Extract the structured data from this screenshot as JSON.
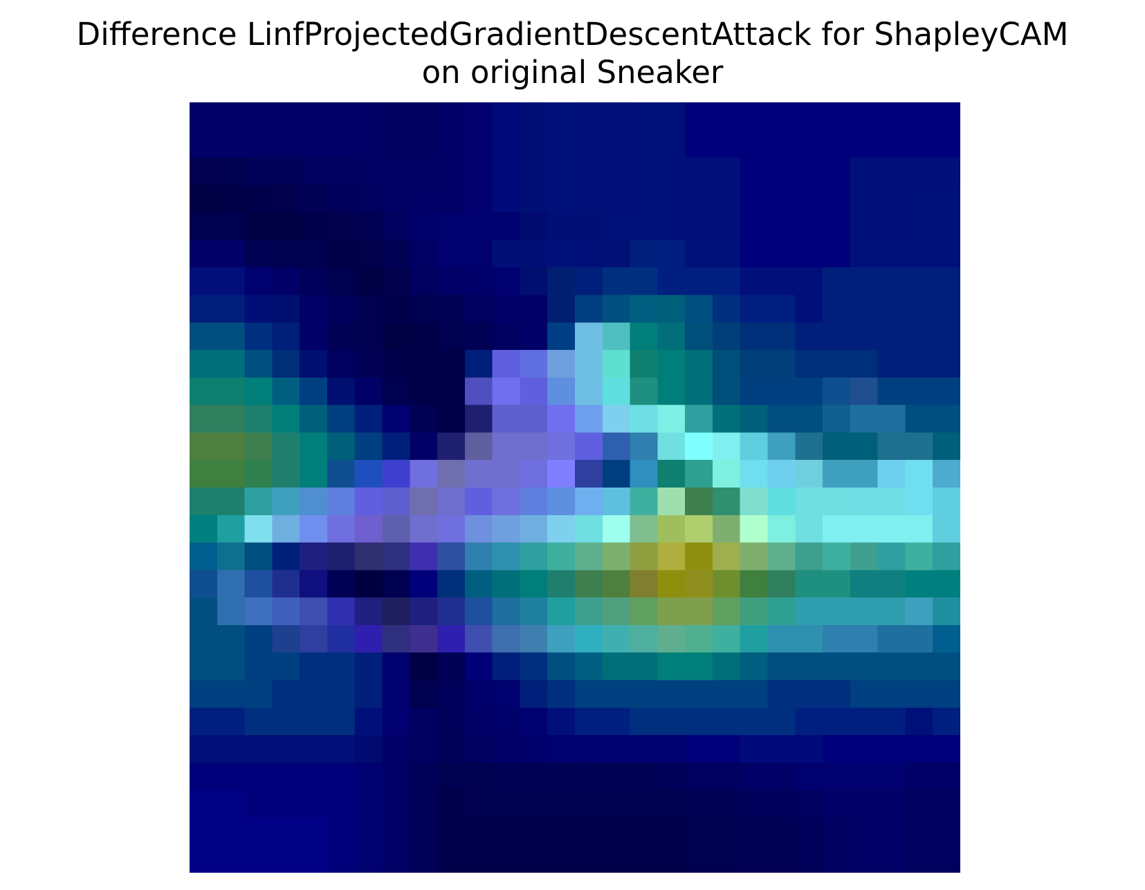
{
  "chart_data": {
    "type": "heatmap",
    "title": "Difference LinfProjectedGradientDescentAttack for ShapleyCAM\non original Sneaker",
    "title_lines": [
      "Difference LinfProjectedGradientDescentAttack for ShapleyCAM",
      "on original Sneaker"
    ],
    "xlabel": "",
    "ylabel": "",
    "axes_visible": false,
    "grid": false,
    "rows": 28,
    "cols": 28,
    "cells": [
      [
        "#000066",
        "#000066",
        "#000066",
        "#000066",
        "#000066",
        "#000066",
        "#000066",
        "#00005f",
        "#00005f",
        "#000066",
        "#00006f",
        "#000a7a",
        "#000f75",
        "#00107a",
        "#001078",
        "#001078",
        "#00107a",
        "#00107a",
        "#00007a",
        "#00007a",
        "#00007a",
        "#00007a",
        "#00007a",
        "#00007a",
        "#00007a",
        "#00007a",
        "#00007a",
        "#00007a"
      ],
      [
        "#000066",
        "#000066",
        "#000066",
        "#000066",
        "#000066",
        "#000066",
        "#000066",
        "#000060",
        "#000060",
        "#000066",
        "#00006f",
        "#000a7a",
        "#000f75",
        "#00107a",
        "#001078",
        "#001078",
        "#00107a",
        "#00107a",
        "#00007a",
        "#00007a",
        "#00007a",
        "#00007a",
        "#00007a",
        "#00007a",
        "#00007a",
        "#00007a",
        "#00007a",
        "#00007a"
      ],
      [
        "#00004f",
        "#000050",
        "#000059",
        "#000059",
        "#00005f",
        "#00005f",
        "#000062",
        "#000064",
        "#000064",
        "#000066",
        "#00006f",
        "#000a7a",
        "#000f75",
        "#00107a",
        "#001078",
        "#001078",
        "#00107a",
        "#00107a",
        "#000f7a",
        "#000f7a",
        "#00007a",
        "#00007a",
        "#00007a",
        "#00007a",
        "#000f7a",
        "#000f7a",
        "#000f7a",
        "#000f7a"
      ],
      [
        "#000044",
        "#000047",
        "#00004a",
        "#00004d",
        "#000055",
        "#00005a",
        "#00005f",
        "#000064",
        "#000066",
        "#000066",
        "#00006f",
        "#000a7a",
        "#000f75",
        "#00107a",
        "#001078",
        "#001078",
        "#00107a",
        "#00107a",
        "#000f7a",
        "#000f7a",
        "#00007a",
        "#00007a",
        "#00007a",
        "#00007a",
        "#000f7a",
        "#000f7a",
        "#00107a",
        "#00107a"
      ],
      [
        "#000050",
        "#000050",
        "#000044",
        "#000044",
        "#00004a",
        "#00004d",
        "#000052",
        "#00005e",
        "#00006a",
        "#00006e",
        "#000070",
        "#00006f",
        "#000a6f",
        "#000f76",
        "#000f76",
        "#00107a",
        "#00107a",
        "#00107a",
        "#000f7a",
        "#000f7a",
        "#00007a",
        "#00007a",
        "#00007a",
        "#00007a",
        "#000f7a",
        "#000f7a",
        "#00107a",
        "#00107a"
      ],
      [
        "#000066",
        "#000066",
        "#000055",
        "#000050",
        "#000050",
        "#000048",
        "#00004b",
        "#000055",
        "#000064",
        "#00006e",
        "#00006f",
        "#000f75",
        "#000f75",
        "#00107a",
        "#001078",
        "#001075",
        "#001f7a",
        "#001f80",
        "#00107a",
        "#00107a",
        "#00007a",
        "#00007a",
        "#00007a",
        "#00007a",
        "#00107a",
        "#00107a",
        "#00107a",
        "#00107a"
      ],
      [
        "#000f7a",
        "#000f7a",
        "#00006f",
        "#000066",
        "#00005a",
        "#000050",
        "#000044",
        "#00004d",
        "#000060",
        "#000066",
        "#00006b",
        "#000070",
        "#000f70",
        "#001f70",
        "#001f7a",
        "#002f80",
        "#002f80",
        "#001f80",
        "#001f80",
        "#001f80",
        "#000f7a",
        "#000f7a",
        "#000f7a",
        "#001f7a",
        "#001f7a",
        "#001f7a",
        "#001f7a",
        "#001f7a"
      ],
      [
        "#001f7a",
        "#001f7a",
        "#000f75",
        "#000f70",
        "#000066",
        "#00005a",
        "#000050",
        "#00004a",
        "#000050",
        "#000055",
        "#000060",
        "#000066",
        "#000066",
        "#001f70",
        "#003f80",
        "#004f80",
        "#005f80",
        "#005f7a",
        "#004f80",
        "#002f80",
        "#001f80",
        "#001f80",
        "#000f7a",
        "#001f7a",
        "#001f7a",
        "#001f7a",
        "#001f7a",
        "#001f7a"
      ],
      [
        "#004f80",
        "#004f80",
        "#002f80",
        "#001f7a",
        "#000066",
        "#000055",
        "#000050",
        "#000045",
        "#000048",
        "#000050",
        "#000055",
        "#000060",
        "#000066",
        "#003f85",
        "#6fbfe5",
        "#4fbfbf",
        "#007f7a",
        "#006f7a",
        "#004f7a",
        "#003f7a",
        "#002f7a",
        "#002f7a",
        "#001f7a",
        "#001f7a",
        "#001f7a",
        "#001f7a",
        "#001f7a",
        "#001f7a"
      ],
      [
        "#006f7a",
        "#006f7a",
        "#004f80",
        "#002f7a",
        "#000f70",
        "#000060",
        "#000055",
        "#00004a",
        "#000048",
        "#000048",
        "#001f7a",
        "#5f5fdf",
        "#5f6fdf",
        "#6f9fdf",
        "#6fbfe5",
        "#5fdfcf",
        "#0f7f6f",
        "#007f7a",
        "#006f7a",
        "#004f7a",
        "#003f7a",
        "#003f7a",
        "#002f7a",
        "#002f7a",
        "#002f7a",
        "#001f7a",
        "#001f7a",
        "#001f7a"
      ],
      [
        "#0f7f6f",
        "#0f7f6f",
        "#007f7a",
        "#005f80",
        "#003f80",
        "#000f70",
        "#000066",
        "#000050",
        "#000048",
        "#000048",
        "#4f4fbf",
        "#6f6fef",
        "#5f5fdf",
        "#5f8fdf",
        "#6fbfe5",
        "#5fdfdf",
        "#1f8f7f",
        "#007f7a",
        "#006f7a",
        "#004f7a",
        "#003f80",
        "#003f80",
        "#003f80",
        "#0f4f8f",
        "#1f4f8f",
        "#003f80",
        "#003f80",
        "#003f80"
      ],
      [
        "#2f7f5f",
        "#2f7f5f",
        "#1f7f6f",
        "#007f7a",
        "#005f7a",
        "#003f80",
        "#001f7a",
        "#000070",
        "#000055",
        "#000048",
        "#1f1f6f",
        "#5f5fcf",
        "#5f5fcf",
        "#6f6fef",
        "#6f9fef",
        "#7fcfef",
        "#6fdfe5",
        "#7fefe5",
        "#2f9f9f",
        "#006f7a",
        "#005f7a",
        "#004f80",
        "#004f80",
        "#0f5f8f",
        "#1f6f9f",
        "#1f6f9f",
        "#004f80",
        "#004f80"
      ],
      [
        "#4f7f3f",
        "#4f7f3f",
        "#3f7f4f",
        "#1f7f6f",
        "#007f7a",
        "#005f7a",
        "#003f80",
        "#001f7a",
        "#000066",
        "#1f1f6f",
        "#5f5f9f",
        "#6f6fcf",
        "#6f6fcf",
        "#6f6fdf",
        "#5f5fdf",
        "#2f5faf",
        "#2f7faf",
        "#6fdfdf",
        "#7fffff",
        "#7fefef",
        "#5fcfdf",
        "#3f9fbf",
        "#1f6f8f",
        "#005f7a",
        "#005f7a",
        "#1f6f8f",
        "#1f6f8f",
        "#005f7a"
      ],
      [
        "#3f7f3f",
        "#3f7f3f",
        "#2f7f4f",
        "#1f7f6f",
        "#007f7a",
        "#0f4f8f",
        "#1f4fbf",
        "#3f3fcf",
        "#6f6fdf",
        "#6f6faf",
        "#6f6fcf",
        "#6f6fcf",
        "#6f6fdf",
        "#7f7fff",
        "#2f3f9f",
        "#003f7f",
        "#2f8fbf",
        "#0f7f6f",
        "#2f9f8f",
        "#7fefdf",
        "#6fdfef",
        "#6fcfef",
        "#6fcfdf",
        "#3f9fbf",
        "#3f9fbf",
        "#6fcfef",
        "#6fdfef",
        "#4faacf"
      ],
      [
        "#1f7f6f",
        "#1f7f6f",
        "#2f9f9f",
        "#3f9fbf",
        "#4f8fcf",
        "#5f7fdf",
        "#5f5fdf",
        "#5f5fcf",
        "#6f6faf",
        "#6f6fcf",
        "#6060df",
        "#6f6fdf",
        "#5f7fdf",
        "#5f8fdf",
        "#6fafef",
        "#5fbfdf",
        "#3faf9f",
        "#9fdfaf",
        "#3f7f4f",
        "#2f8f6f",
        "#7fdfcf",
        "#5fdfdf",
        "#6fdfdf",
        "#6fdfdf",
        "#6fdfe5",
        "#6fdfe5",
        "#6fdfef",
        "#5fcfdf"
      ],
      [
        "#007f7f",
        "#1f9f9f",
        "#7fdfef",
        "#6fafdf",
        "#6f8fef",
        "#6f6fdf",
        "#6f5fcf",
        "#5f5faf",
        "#6f6fcf",
        "#6f6fdf",
        "#6f8fdf",
        "#6f9fdf",
        "#6fafdf",
        "#7fcfef",
        "#6fdfdf",
        "#9fffef",
        "#7fbf8f",
        "#9fbf5f",
        "#afcf6f",
        "#7faf6f",
        "#afffcf",
        "#7fefdf",
        "#6fdfdf",
        "#7fefef",
        "#7fefef",
        "#7fefef",
        "#7fefef",
        "#5fcfdf"
      ],
      [
        "#005f8f",
        "#0f6f8f",
        "#004f80",
        "#00207a",
        "#1f1f7f",
        "#1f1f70",
        "#2f2f6f",
        "#2f2f7f",
        "#3f2faf",
        "#2f4f9f",
        "#2f7faf",
        "#2f8faf",
        "#2f9f9f",
        "#3faf9f",
        "#5faf8f",
        "#7faf6f",
        "#8f9f3f",
        "#afaf3f",
        "#8f8f0f",
        "#9faf4f",
        "#7faf6f",
        "#5faf8f",
        "#3f9f8f",
        "#3faf9f",
        "#3f9f8f",
        "#2f9f9f",
        "#3faf9f",
        "#2f9f9f"
      ],
      [
        "#0f4f8f",
        "#2f6faf",
        "#1f4f9f",
        "#1f2f8f",
        "#0f0f7f",
        "#000055",
        "#000040",
        "#000050",
        "#00007a",
        "#002f7a",
        "#005f80",
        "#006f7a",
        "#007f7a",
        "#1f7f6f",
        "#3f7f4f",
        "#4f7f3f",
        "#7f7f2f",
        "#8f8f0f",
        "#8f8f1f",
        "#6f8f2f",
        "#3f7f3f",
        "#2f7f5f",
        "#1f8f7f",
        "#1f8f7f",
        "#0f7f7f",
        "#0f7f7f",
        "#007f7f",
        "#007f7f"
      ],
      [
        "#004f80",
        "#2f6faf",
        "#3f6fbf",
        "#3f5fbf",
        "#3f4faf",
        "#2f2faf",
        "#1f1f7f",
        "#1f1f5f",
        "#1f1f7f",
        "#1f2f8f",
        "#1f4f9f",
        "#1f6f9f",
        "#1f7f9f",
        "#1f9f9f",
        "#3f9f8f",
        "#4f9f7f",
        "#5f9f5f",
        "#7f9f4f",
        "#7f9f4f",
        "#5f9f5f",
        "#3f9f7f",
        "#2f9f8f",
        "#2f9faf",
        "#2f9faf",
        "#2f9faf",
        "#2f9faf",
        "#3f9fbf",
        "#1f8f9f"
      ],
      [
        "#004f80",
        "#004f80",
        "#003f80",
        "#1f3f8f",
        "#2f3f9f",
        "#1f2f9f",
        "#2f1faf",
        "#2f2f7f",
        "#3f2f8f",
        "#2f1faf",
        "#3f4faf",
        "#3f6faf",
        "#3f7faf",
        "#3f9fbf",
        "#2fafbf",
        "#3fafaf",
        "#4faf9f",
        "#5faf8f",
        "#4faf8f",
        "#3faf9f",
        "#1f9f9f",
        "#2f8faf",
        "#2f8faf",
        "#2f7faf",
        "#2f7faf",
        "#1f6f9f",
        "#1f6f9f",
        "#005f8f"
      ],
      [
        "#004f80",
        "#004f80",
        "#003f80",
        "#003f80",
        "#002f80",
        "#002f80",
        "#001f7a",
        "#00006f",
        "#000044",
        "#000055",
        "#00007a",
        "#001f7a",
        "#002f80",
        "#004f80",
        "#005f80",
        "#006f7a",
        "#006f7a",
        "#007f7a",
        "#007f7a",
        "#006f7a",
        "#005f80",
        "#004f80",
        "#004f80",
        "#004f80",
        "#004f80",
        "#004f80",
        "#004f80",
        "#004f80"
      ],
      [
        "#003f80",
        "#003f80",
        "#003f80",
        "#002f80",
        "#002f80",
        "#002f80",
        "#001f7a",
        "#00006f",
        "#000050",
        "#00005a",
        "#00006a",
        "#00006f",
        "#001f7a",
        "#002f80",
        "#003f80",
        "#003f80",
        "#003f80",
        "#003f80",
        "#003f80",
        "#003f80",
        "#003f80",
        "#002f80",
        "#002f80",
        "#002f80",
        "#003f80",
        "#003f80",
        "#003f80",
        "#003f80"
      ],
      [
        "#001f80",
        "#001f80",
        "#002f80",
        "#002f80",
        "#002f80",
        "#002f80",
        "#00107a",
        "#000070",
        "#000060",
        "#00005a",
        "#000066",
        "#00006b",
        "#000070",
        "#000f7a",
        "#001f80",
        "#001f80",
        "#002f80",
        "#002f80",
        "#002f80",
        "#002f80",
        "#002f80",
        "#002f80",
        "#001f80",
        "#001f80",
        "#001f80",
        "#001f80",
        "#00107a",
        "#001f80"
      ],
      [
        "#001078",
        "#001078",
        "#001078",
        "#001078",
        "#001078",
        "#001078",
        "#000a70",
        "#000066",
        "#000060",
        "#000058",
        "#000060",
        "#000066",
        "#00006a",
        "#000070",
        "#00006f",
        "#000070",
        "#000070",
        "#000070",
        "#00007a",
        "#00007a",
        "#000a7a",
        "#000a7a",
        "#000a7a",
        "#00007a",
        "#00007a",
        "#00007a",
        "#00007a",
        "#00007a"
      ],
      [
        "#00007a",
        "#00007a",
        "#00007a",
        "#00007a",
        "#00007a",
        "#00007a",
        "#000070",
        "#000066",
        "#000058",
        "#000050",
        "#000050",
        "#000055",
        "#000055",
        "#000055",
        "#000055",
        "#000055",
        "#000055",
        "#000058",
        "#000060",
        "#000060",
        "#000066",
        "#000066",
        "#00006f",
        "#00006f",
        "#000070",
        "#000070",
        "#000066",
        "#000066"
      ],
      [
        "#000085",
        "#000085",
        "#00007a",
        "#00007a",
        "#00007a",
        "#00007a",
        "#000070",
        "#000066",
        "#000058",
        "#00004a",
        "#000050",
        "#000050",
        "#000050",
        "#000050",
        "#000050",
        "#000050",
        "#000050",
        "#000050",
        "#000055",
        "#000055",
        "#00005a",
        "#00005a",
        "#000060",
        "#000066",
        "#000066",
        "#000066",
        "#00005f",
        "#00005f"
      ],
      [
        "#000085",
        "#000085",
        "#000085",
        "#000085",
        "#000085",
        "#00007a",
        "#000070",
        "#000066",
        "#000058",
        "#00004a",
        "#00004a",
        "#00004a",
        "#00004a",
        "#00004a",
        "#00004a",
        "#00004a",
        "#00004a",
        "#00004a",
        "#000050",
        "#000050",
        "#000055",
        "#000055",
        "#00005a",
        "#000060",
        "#000066",
        "#000066",
        "#00005f",
        "#00005f"
      ],
      [
        "#000085",
        "#000085",
        "#000085",
        "#000085",
        "#000085",
        "#00007a",
        "#000070",
        "#000066",
        "#000058",
        "#00004a",
        "#00004a",
        "#00004a",
        "#00004a",
        "#00004a",
        "#00004a",
        "#00004a",
        "#00004a",
        "#00004a",
        "#000050",
        "#000050",
        "#000055",
        "#000055",
        "#00005a",
        "#000060",
        "#000066",
        "#000066",
        "#00005f",
        "#00005f"
      ]
    ]
  }
}
